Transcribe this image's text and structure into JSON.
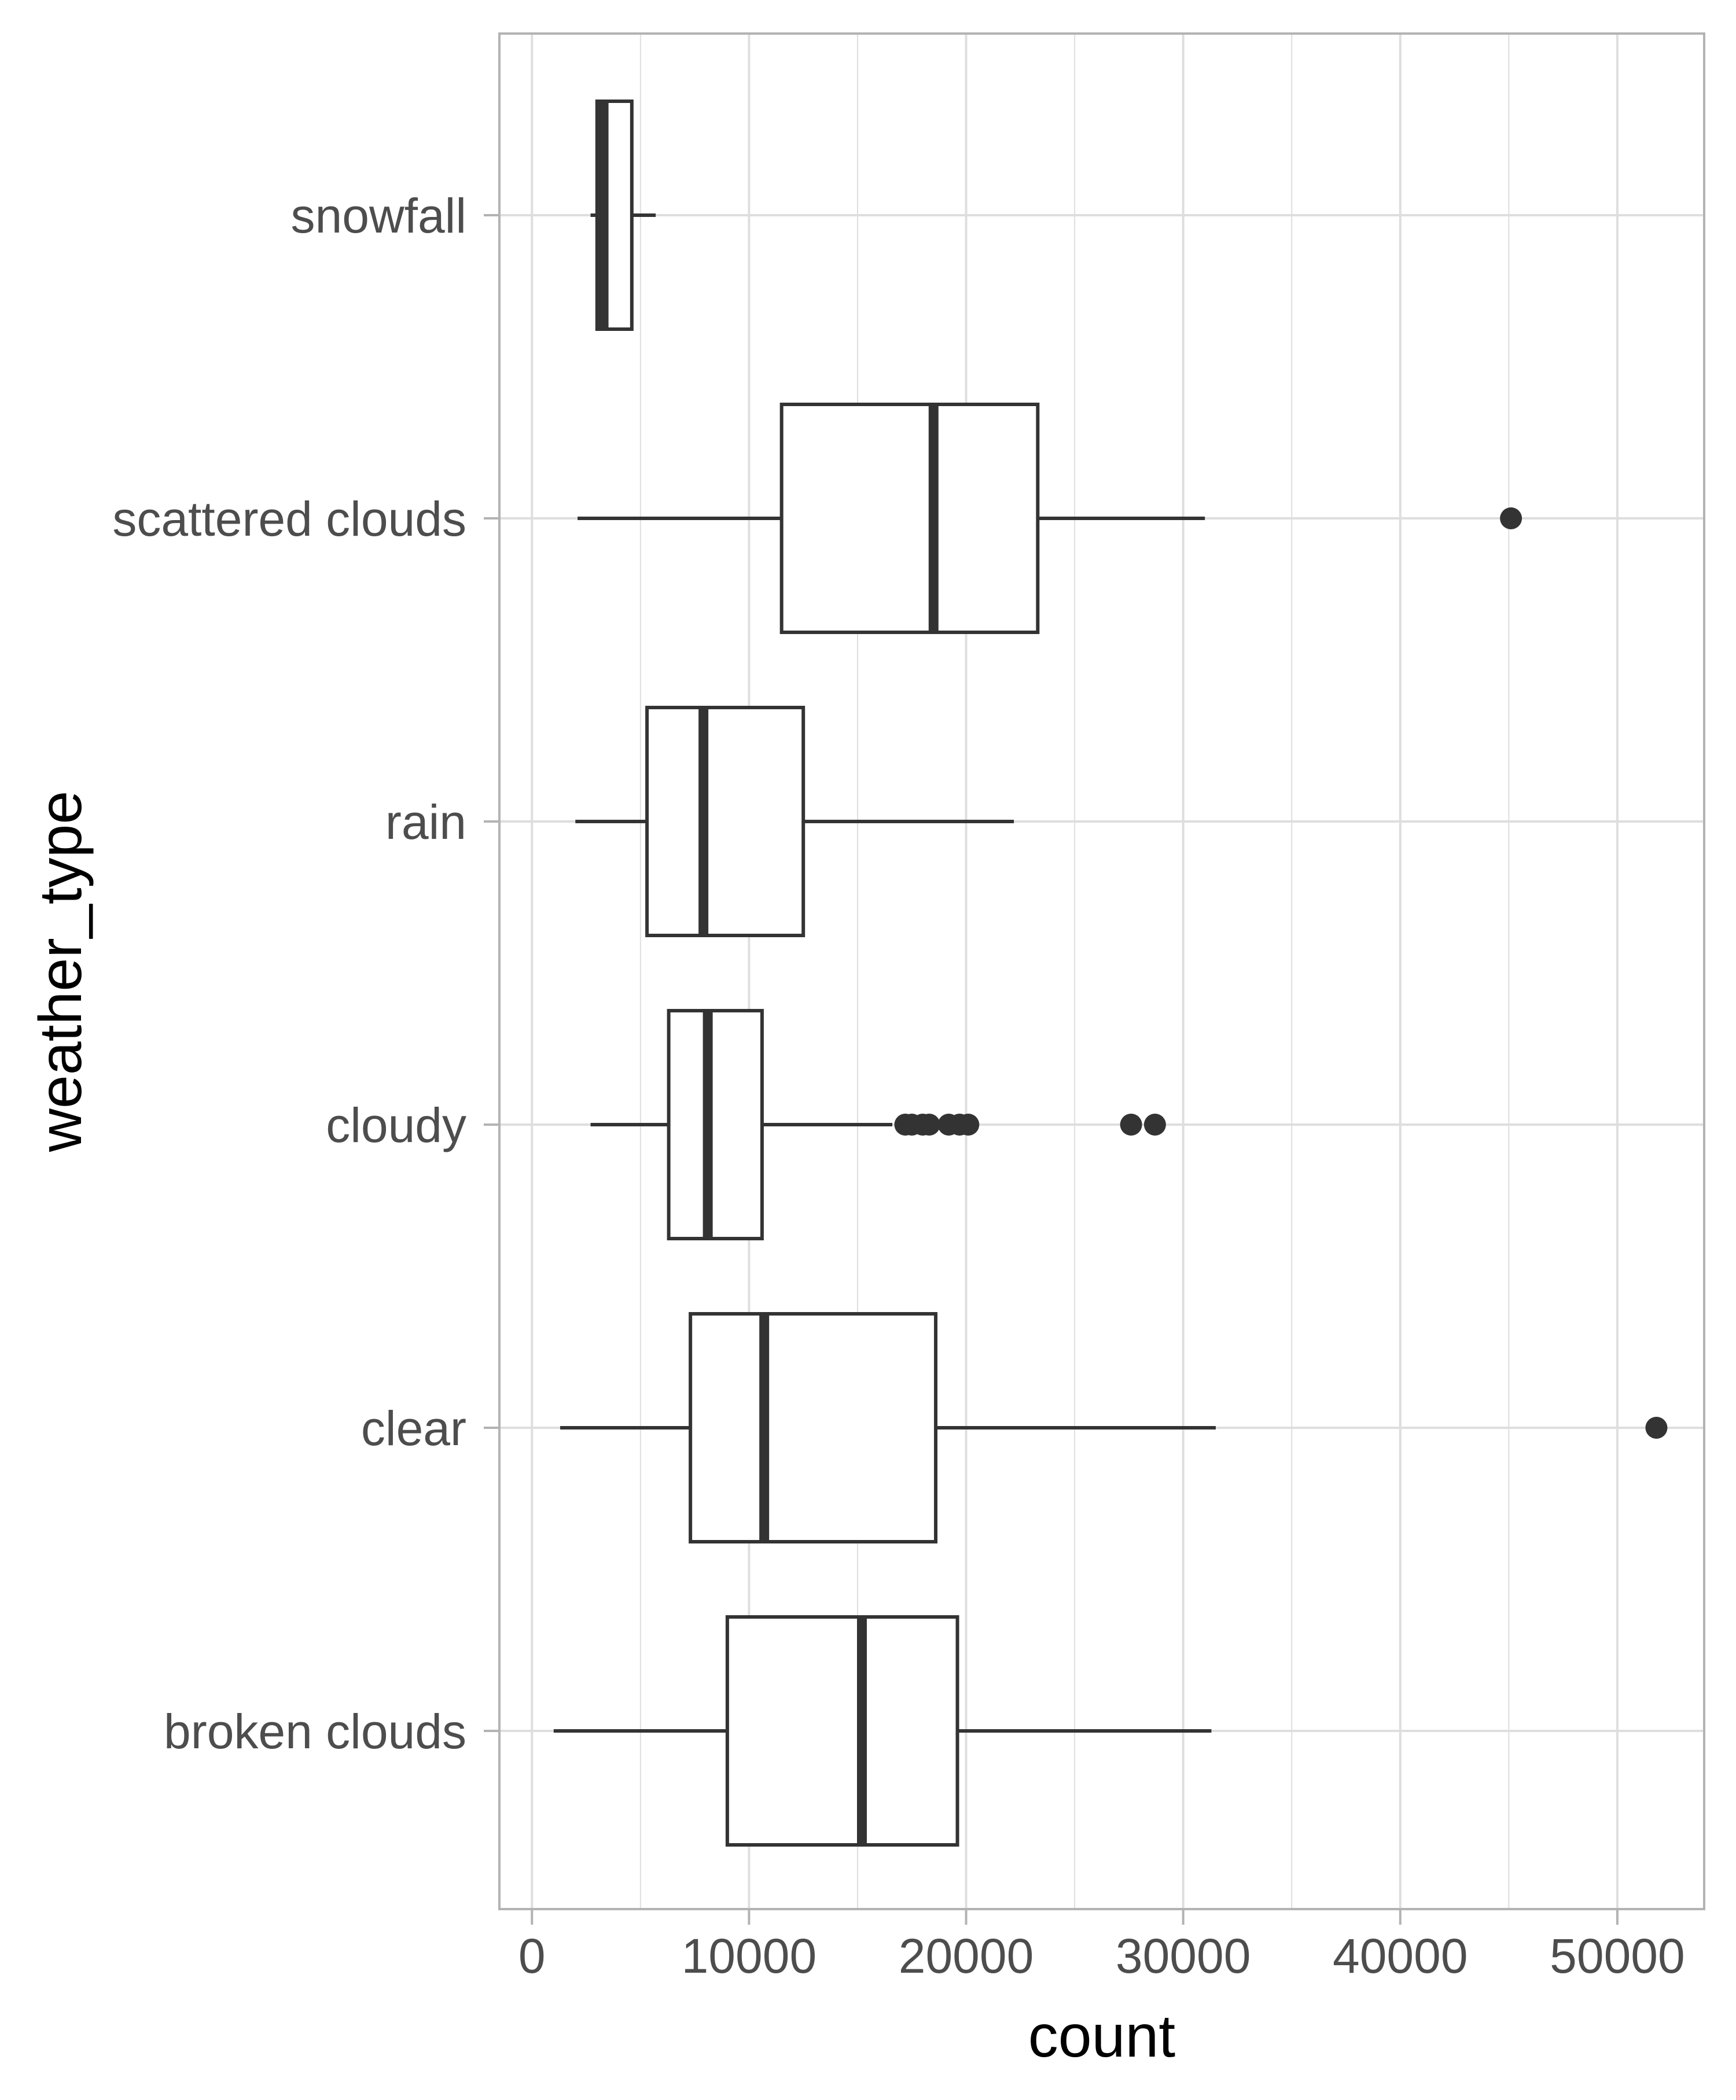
{
  "chart_data": {
    "type": "boxplot",
    "orientation": "horizontal",
    "title": "",
    "xlabel": "count",
    "ylabel": "weather_type",
    "xlim": [
      -1500,
      54000
    ],
    "xticks": [
      0,
      10000,
      20000,
      30000,
      40000,
      50000
    ],
    "xtick_labels": [
      "0",
      "10000",
      "20000",
      "30000",
      "40000",
      "50000"
    ],
    "grid": true,
    "theme": "light",
    "colors": {
      "box_stroke": "#333333",
      "box_fill": "#ffffff",
      "grid": "#dedede",
      "panel_border": "#b3b3b3",
      "tick_text": "#4d4d4d"
    },
    "categories_top_to_bottom": [
      "snowfall",
      "scattered clouds",
      "rain",
      "cloudy",
      "clear",
      "broken clouds"
    ],
    "series": [
      {
        "category": "snowfall",
        "whisker_low": 2700,
        "q1": 3000,
        "median": 3300,
        "q3": 4600,
        "whisker_high": 5700,
        "outliers": []
      },
      {
        "category": "scattered clouds",
        "whisker_low": 2100,
        "q1": 11500,
        "median": 18500,
        "q3": 23300,
        "whisker_high": 31000,
        "outliers": [
          45100
        ]
      },
      {
        "category": "rain",
        "whisker_low": 2000,
        "q1": 5300,
        "median": 7900,
        "q3": 12500,
        "whisker_high": 22200,
        "outliers": []
      },
      {
        "category": "cloudy",
        "whisker_low": 2700,
        "q1": 6300,
        "median": 8100,
        "q3": 10600,
        "whisker_high": 16600,
        "outliers": [
          17200,
          17500,
          18000,
          18300,
          19200,
          19700,
          20100,
          27600,
          28700
        ]
      },
      {
        "category": "clear",
        "whisker_low": 1300,
        "q1": 7300,
        "median": 10700,
        "q3": 18600,
        "whisker_high": 31500,
        "outliers": [
          51800
        ]
      },
      {
        "category": "broken clouds",
        "whisker_low": 1000,
        "q1": 9000,
        "median": 15200,
        "q3": 19600,
        "whisker_high": 31300,
        "outliers": []
      }
    ]
  }
}
